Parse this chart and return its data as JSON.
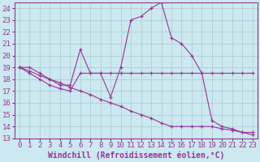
{
  "xlabel": "Windchill (Refroidissement éolien,°C)",
  "background_color": "#cce8f0",
  "line_color": "#993399",
  "xlim": [
    -0.5,
    23.5
  ],
  "ylim": [
    13,
    24.5
  ],
  "yticks": [
    13,
    14,
    15,
    16,
    17,
    18,
    19,
    20,
    21,
    22,
    23,
    24
  ],
  "xticks": [
    0,
    1,
    2,
    3,
    4,
    5,
    6,
    7,
    8,
    9,
    10,
    11,
    12,
    13,
    14,
    15,
    16,
    17,
    18,
    19,
    20,
    21,
    22,
    23
  ],
  "line1_x": [
    0,
    1,
    2,
    3,
    4,
    5,
    6,
    7,
    8,
    9,
    10,
    11,
    12,
    13,
    14,
    15,
    16,
    17,
    18,
    19,
    20,
    21,
    22,
    23
  ],
  "line1_y": [
    19.0,
    19.0,
    18.5,
    18.0,
    17.5,
    17.5,
    20.5,
    18.5,
    18.5,
    16.5,
    19.0,
    23.0,
    23.3,
    24.0,
    24.5,
    21.5,
    21.0,
    20.0,
    18.5,
    14.5,
    14.0,
    13.8,
    13.5,
    13.5
  ],
  "line2_x": [
    0,
    1,
    2,
    3,
    4,
    5,
    6,
    7,
    8,
    9,
    10,
    11,
    12,
    13,
    14,
    15,
    16,
    17,
    18,
    19,
    20,
    21,
    22,
    23
  ],
  "line2_y": [
    19.0,
    18.5,
    18.0,
    17.5,
    17.2,
    17.0,
    18.5,
    18.5,
    18.5,
    18.5,
    18.5,
    18.5,
    18.5,
    18.5,
    18.5,
    18.5,
    18.5,
    18.5,
    18.5,
    18.5,
    18.5,
    18.5,
    18.5,
    18.5
  ],
  "line3_x": [
    0,
    1,
    2,
    3,
    4,
    5,
    6,
    7,
    8,
    9,
    10,
    11,
    12,
    13,
    14,
    15,
    16,
    17,
    18,
    19,
    20,
    21,
    22,
    23
  ],
  "line3_y": [
    19.0,
    18.7,
    18.3,
    18.0,
    17.7,
    17.3,
    17.0,
    16.7,
    16.3,
    16.0,
    15.7,
    15.3,
    15.0,
    14.7,
    14.3,
    14.0,
    14.0,
    14.0,
    14.0,
    14.0,
    13.8,
    13.7,
    13.5,
    13.3
  ],
  "grid_color": "#aacccc",
  "tick_fontsize": 6.5,
  "label_fontsize": 7
}
